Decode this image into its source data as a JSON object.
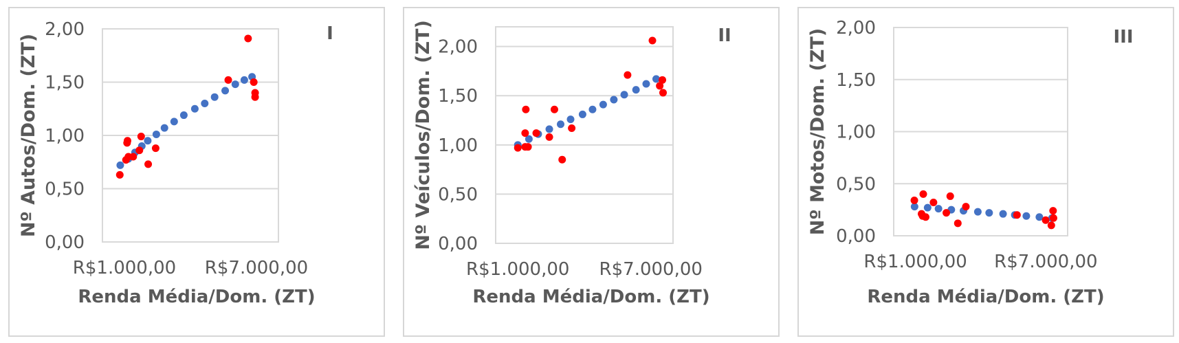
{
  "chart_data": [
    {
      "type": "scatter",
      "panel_label": "I",
      "xlabel": "Renda Média/Dom. (ZT)",
      "ylabel": "Nº Autos/Dom. (ZT)",
      "xlim": [
        0,
        8000
      ],
      "ylim": [
        0,
        2.0
      ],
      "x_tick_values": [
        1000,
        7000
      ],
      "x_tick_labels": [
        "R$1.000,00",
        "R$7.000,00"
      ],
      "y_tick_values": [
        0,
        0.5,
        1.0,
        1.5,
        2.0
      ],
      "y_tick_labels": [
        "0,00",
        "0,50",
        "1,00",
        "1,50",
        "2,00"
      ],
      "grid": true,
      "series": [
        {
          "color": "#ff0000",
          "points": [
            [
              790,
              0.63
            ],
            [
              1070,
              0.77
            ],
            [
              1120,
              0.93
            ],
            [
              1140,
              0.95
            ],
            [
              1180,
              0.8
            ],
            [
              1400,
              0.8
            ],
            [
              1680,
              0.86
            ],
            [
              1760,
              0.99
            ],
            [
              2080,
              0.73
            ],
            [
              2420,
              0.88
            ],
            [
              5720,
              1.52
            ],
            [
              6620,
              1.91
            ],
            [
              6880,
              1.5
            ],
            [
              6940,
              1.4
            ],
            [
              6940,
              1.36
            ]
          ]
        },
        {
          "color": "#4472c4",
          "points": [
            [
              810,
              0.72
            ],
            [
              1180,
              0.78
            ],
            [
              1480,
              0.84
            ],
            [
              1790,
              0.9
            ],
            [
              2060,
              0.95
            ],
            [
              2450,
              1.01
            ],
            [
              2820,
              1.07
            ],
            [
              3260,
              1.13
            ],
            [
              3700,
              1.19
            ],
            [
              4200,
              1.25
            ],
            [
              4650,
              1.3
            ],
            [
              5100,
              1.36
            ],
            [
              5580,
              1.42
            ],
            [
              6040,
              1.48
            ],
            [
              6450,
              1.52
            ],
            [
              6800,
              1.55
            ]
          ]
        }
      ]
    },
    {
      "type": "scatter",
      "panel_label": "II",
      "xlabel": "Renda Média/Dom. (ZT)",
      "ylabel": "Nº Veículos/Dom. (ZT)",
      "xlim": [
        0,
        8000
      ],
      "ylim": [
        0,
        2.2
      ],
      "x_tick_values": [
        1000,
        7000
      ],
      "x_tick_labels": [
        "R$1.000,00",
        "R$7.000,00"
      ],
      "y_tick_values": [
        0,
        0.5,
        1.0,
        1.5,
        2.0
      ],
      "y_tick_labels": [
        "0,00",
        "0,50",
        "1,00",
        "1,50",
        "2,00"
      ],
      "grid": true,
      "series": [
        {
          "color": "#ff0000",
          "points": [
            [
              1000,
              0.97
            ],
            [
              1330,
              1.12
            ],
            [
              1330,
              0.98
            ],
            [
              1360,
              1.36
            ],
            [
              1460,
              0.98
            ],
            [
              1830,
              1.12
            ],
            [
              2420,
              1.08
            ],
            [
              2650,
              1.36
            ],
            [
              3000,
              0.85
            ],
            [
              3430,
              1.17
            ],
            [
              5950,
              1.71
            ],
            [
              7070,
              2.06
            ],
            [
              7400,
              1.6
            ],
            [
              7520,
              1.66
            ],
            [
              7550,
              1.53
            ]
          ]
        },
        {
          "color": "#4472c4",
          "points": [
            [
              1000,
              1.0
            ],
            [
              1500,
              1.06
            ],
            [
              1920,
              1.11
            ],
            [
              2420,
              1.16
            ],
            [
              2930,
              1.21
            ],
            [
              3380,
              1.26
            ],
            [
              3920,
              1.31
            ],
            [
              4370,
              1.36
            ],
            [
              4850,
              1.41
            ],
            [
              5330,
              1.46
            ],
            [
              5800,
              1.51
            ],
            [
              6330,
              1.56
            ],
            [
              6790,
              1.62
            ],
            [
              7240,
              1.67
            ]
          ]
        }
      ]
    },
    {
      "type": "scatter",
      "panel_label": "III",
      "xlabel": "Renda Média/Dom. (ZT)",
      "ylabel": "Nº Motos/Dom. (ZT)",
      "xlim": [
        0,
        8000
      ],
      "ylim": [
        0,
        2.0
      ],
      "x_tick_values": [
        1000,
        7000
      ],
      "x_tick_labels": [
        "R$1.000,00",
        "R$7.000,00"
      ],
      "y_tick_values": [
        0,
        0.5,
        1.0,
        1.5,
        2.0
      ],
      "y_tick_labels": [
        "0,00",
        "0,50",
        "1,00",
        "1,50",
        "2,00"
      ],
      "grid": true,
      "series": [
        {
          "color": "#ff0000",
          "points": [
            [
              950,
              0.34
            ],
            [
              1280,
              0.21
            ],
            [
              1330,
              0.19
            ],
            [
              1360,
              0.4
            ],
            [
              1470,
              0.18
            ],
            [
              1830,
              0.32
            ],
            [
              2420,
              0.22
            ],
            [
              2600,
              0.38
            ],
            [
              2950,
              0.12
            ],
            [
              3320,
              0.28
            ],
            [
              5670,
              0.2
            ],
            [
              6990,
              0.15
            ],
            [
              7250,
              0.1
            ],
            [
              7330,
              0.24
            ],
            [
              7350,
              0.17
            ]
          ]
        },
        {
          "color": "#4472c4",
          "points": [
            [
              960,
              0.28
            ],
            [
              1560,
              0.27
            ],
            [
              2060,
              0.26
            ],
            [
              2650,
              0.25
            ],
            [
              3210,
              0.24
            ],
            [
              3870,
              0.23
            ],
            [
              4390,
              0.22
            ],
            [
              5030,
              0.21
            ],
            [
              5570,
              0.2
            ],
            [
              6100,
              0.19
            ],
            [
              6700,
              0.18
            ],
            [
              7280,
              0.17
            ]
          ]
        }
      ]
    }
  ]
}
